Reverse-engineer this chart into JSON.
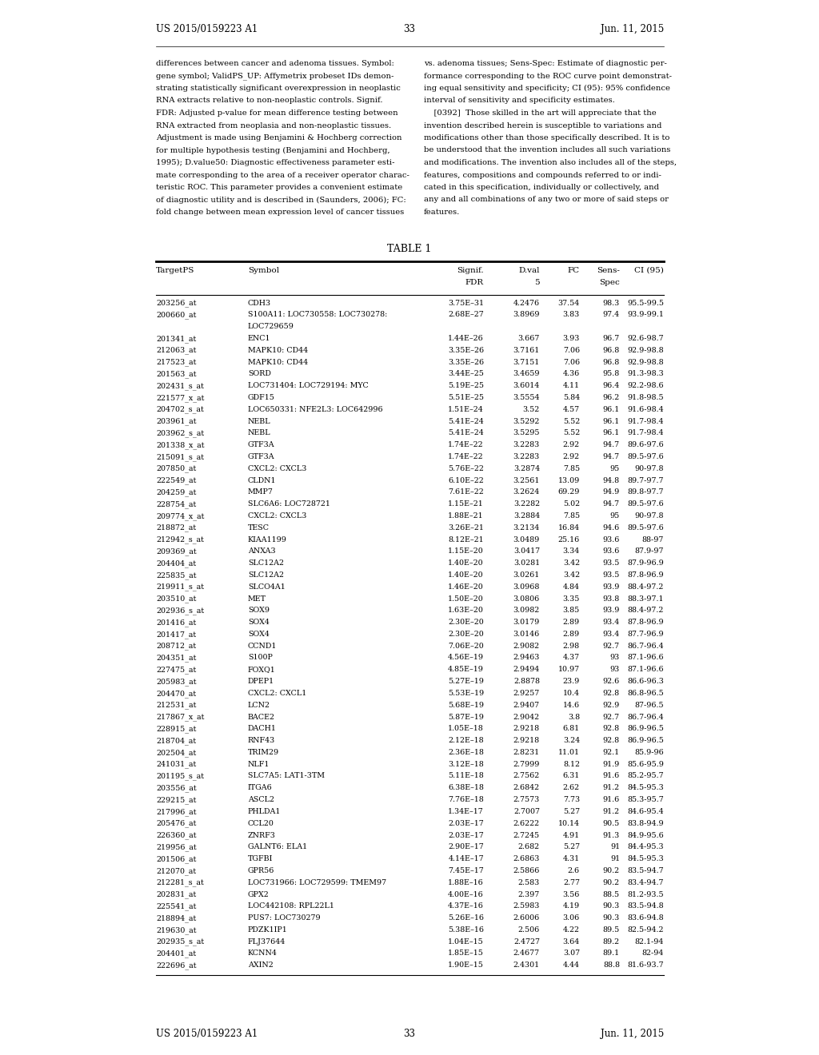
{
  "page_number": "33",
  "patent_number": "US 2015/0159223 A1",
  "patent_date": "Jun. 11, 2015",
  "left_text_lines": [
    "differences between cancer and adenoma tissues. Symbol:",
    "gene symbol; ValidPS_UP: Affymetrix probeset IDs demon-",
    "strating statistically significant overexpression in neoplastic",
    "RNA extracts relative to non-neoplastic controls. Signif.",
    "FDR: Adjusted p-value for mean difference testing between",
    "RNA extracted from neoplasia and non-neoplastic tissues.",
    "Adjustment is made using Benjamini & Hochberg correction",
    "for multiple hypothesis testing (Benjamini and Hochberg,",
    "1995); D.value50: Diagnostic effectiveness parameter esti-",
    "mate corresponding to the area of a receiver operator charac-",
    "teristic ROC. This parameter provides a convenient estimate",
    "of diagnostic utility and is described in (Saunders, 2006); FC:",
    "fold change between mean expression level of cancer tissues"
  ],
  "right_text_lines": [
    "vs. adenoma tissues; Sens-Spec: Estimate of diagnostic per-",
    "formance corresponding to the ROC curve point demonstrat-",
    "ing equal sensitivity and specificity; CI (95): 95% confidence",
    "interval of sensitivity and specificity estimates.",
    "    [0392]  Those skilled in the art will appreciate that the",
    "invention described herein is susceptible to variations and",
    "modifications other than those specifically described. It is to",
    "be understood that the invention includes all such variations",
    "and modifications. The invention also includes all of the steps,",
    "features, compositions and compounds referred to or indi-",
    "cated in this specification, individually or collectively, and",
    "any and all combinations of any two or more of said steps or",
    "features."
  ],
  "table_title": "TABLE 1",
  "col_headers_line1": [
    "TargetPS",
    "Symbol",
    "Signif.",
    "D.val",
    "FC",
    "Sens-",
    "CI (95)"
  ],
  "col_headers_line2": [
    "",
    "",
    "FDR",
    "5",
    "",
    "Spec",
    ""
  ],
  "rows": [
    [
      "203256_at",
      "CDH3",
      "3.75E–31",
      "4.2476",
      "37.54",
      "98.3",
      "95.5-99.5"
    ],
    [
      "200660_at",
      "S100A11: LOC730558: LOC730278:",
      "2.68E–27",
      "3.8969",
      "3.83",
      "97.4",
      "93.9-99.1"
    ],
    [
      "",
      "LOC729659",
      "",
      "",
      "",
      "",
      ""
    ],
    [
      "201341_at",
      "ENC1",
      "1.44E–26",
      "3.667",
      "3.93",
      "96.7",
      "92.6-98.7"
    ],
    [
      "212063_at",
      "MAPK10: CD44",
      "3.35E–26",
      "3.7161",
      "7.06",
      "96.8",
      "92.9-98.8"
    ],
    [
      "217523_at",
      "MAPK10: CD44",
      "3.35E–26",
      "3.7151",
      "7.06",
      "96.8",
      "92.9-98.8"
    ],
    [
      "201563_at",
      "SORD",
      "3.44E–25",
      "3.4659",
      "4.36",
      "95.8",
      "91.3-98.3"
    ],
    [
      "202431_s_at",
      "LOC731404: LOC729194: MYC",
      "5.19E–25",
      "3.6014",
      "4.11",
      "96.4",
      "92.2-98.6"
    ],
    [
      "221577_x_at",
      "GDF15",
      "5.51E–25",
      "3.5554",
      "5.84",
      "96.2",
      "91.8-98.5"
    ],
    [
      "204702_s_at",
      "LOC650331: NFE2L3: LOC642996",
      "1.51E–24",
      "3.52",
      "4.57",
      "96.1",
      "91.6-98.4"
    ],
    [
      "203961_at",
      "NEBL",
      "5.41E–24",
      "3.5292",
      "5.52",
      "96.1",
      "91.7-98.4"
    ],
    [
      "203962_s_at",
      "NEBL",
      "5.41E–24",
      "3.5295",
      "5.52",
      "96.1",
      "91.7-98.4"
    ],
    [
      "201338_x_at",
      "GTF3A",
      "1.74E–22",
      "3.2283",
      "2.92",
      "94.7",
      "89.6-97.6"
    ],
    [
      "215091_s_at",
      "GTF3A",
      "1.74E–22",
      "3.2283",
      "2.92",
      "94.7",
      "89.5-97.6"
    ],
    [
      "207850_at",
      "CXCL2: CXCL3",
      "5.76E–22",
      "3.2874",
      "7.85",
      "95",
      "90-97.8"
    ],
    [
      "222549_at",
      "CLDN1",
      "6.10E–22",
      "3.2561",
      "13.09",
      "94.8",
      "89.7-97.7"
    ],
    [
      "204259_at",
      "MMP7",
      "7.61E–22",
      "3.2624",
      "69.29",
      "94.9",
      "89.8-97.7"
    ],
    [
      "228754_at",
      "SLC6A6: LOC728721",
      "1.15E–21",
      "3.2282",
      "5.02",
      "94.7",
      "89.5-97.6"
    ],
    [
      "209774_x_at",
      "CXCL2: CXCL3",
      "1.88E–21",
      "3.2884",
      "7.85",
      "95",
      "90-97.8"
    ],
    [
      "218872_at",
      "TESC",
      "3.26E–21",
      "3.2134",
      "16.84",
      "94.6",
      "89.5-97.6"
    ],
    [
      "212942_s_at",
      "KIAA1199",
      "8.12E–21",
      "3.0489",
      "25.16",
      "93.6",
      "88-97"
    ],
    [
      "209369_at",
      "ANXA3",
      "1.15E–20",
      "3.0417",
      "3.34",
      "93.6",
      "87.9-97"
    ],
    [
      "204404_at",
      "SLC12A2",
      "1.40E–20",
      "3.0281",
      "3.42",
      "93.5",
      "87.9-96.9"
    ],
    [
      "225835_at",
      "SLC12A2",
      "1.40E–20",
      "3.0261",
      "3.42",
      "93.5",
      "87.8-96.9"
    ],
    [
      "219911_s_at",
      "SLCO4A1",
      "1.46E–20",
      "3.0968",
      "4.84",
      "93.9",
      "88.4-97.2"
    ],
    [
      "203510_at",
      "MET",
      "1.50E–20",
      "3.0806",
      "3.35",
      "93.8",
      "88.3-97.1"
    ],
    [
      "202936_s_at",
      "SOX9",
      "1.63E–20",
      "3.0982",
      "3.85",
      "93.9",
      "88.4-97.2"
    ],
    [
      "201416_at",
      "SOX4",
      "2.30E–20",
      "3.0179",
      "2.89",
      "93.4",
      "87.8-96.9"
    ],
    [
      "201417_at",
      "SOX4",
      "2.30E–20",
      "3.0146",
      "2.89",
      "93.4",
      "87.7-96.9"
    ],
    [
      "208712_at",
      "CCND1",
      "7.06E–20",
      "2.9082",
      "2.98",
      "92.7",
      "86.7-96.4"
    ],
    [
      "204351_at",
      "S100P",
      "4.56E–19",
      "2.9463",
      "4.37",
      "93",
      "87.1-96.6"
    ],
    [
      "227475_at",
      "FOXQ1",
      "4.85E–19",
      "2.9494",
      "10.97",
      "93",
      "87.1-96.6"
    ],
    [
      "205983_at",
      "DPEP1",
      "5.27E–19",
      "2.8878",
      "23.9",
      "92.6",
      "86.6-96.3"
    ],
    [
      "204470_at",
      "CXCL2: CXCL1",
      "5.53E–19",
      "2.9257",
      "10.4",
      "92.8",
      "86.8-96.5"
    ],
    [
      "212531_at",
      "LCN2",
      "5.68E–19",
      "2.9407",
      "14.6",
      "92.9",
      "87-96.5"
    ],
    [
      "217867_x_at",
      "BACE2",
      "5.87E–19",
      "2.9042",
      "3.8",
      "92.7",
      "86.7-96.4"
    ],
    [
      "228915_at",
      "DACH1",
      "1.05E–18",
      "2.9218",
      "6.81",
      "92.8",
      "86.9-96.5"
    ],
    [
      "218704_at",
      "RNF43",
      "2.12E–18",
      "2.9218",
      "3.24",
      "92.8",
      "86.9-96.5"
    ],
    [
      "202504_at",
      "TRIM29",
      "2.36E–18",
      "2.8231",
      "11.01",
      "92.1",
      "85.9-96"
    ],
    [
      "241031_at",
      "NLF1",
      "3.12E–18",
      "2.7999",
      "8.12",
      "91.9",
      "85.6-95.9"
    ],
    [
      "201195_s_at",
      "SLC7A5: LAT1-3TM",
      "5.11E–18",
      "2.7562",
      "6.31",
      "91.6",
      "85.2-95.7"
    ],
    [
      "203556_at",
      "ITGA6",
      "6.38E–18",
      "2.6842",
      "2.62",
      "91.2",
      "84.5-95.3"
    ],
    [
      "229215_at",
      "ASCL2",
      "7.76E–18",
      "2.7573",
      "7.73",
      "91.6",
      "85.3-95.7"
    ],
    [
      "217996_at",
      "PHLDA1",
      "1.34E–17",
      "2.7007",
      "5.27",
      "91.2",
      "84.6-95.4"
    ],
    [
      "205476_at",
      "CCL20",
      "2.03E–17",
      "2.6222",
      "10.14",
      "90.5",
      "83.8-94.9"
    ],
    [
      "226360_at",
      "ZNRF3",
      "2.03E–17",
      "2.7245",
      "4.91",
      "91.3",
      "84.9-95.6"
    ],
    [
      "219956_at",
      "GALNT6: ELA1",
      "2.90E–17",
      "2.682",
      "5.27",
      "91",
      "84.4-95.3"
    ],
    [
      "201506_at",
      "TGFBI",
      "4.14E–17",
      "2.6863",
      "4.31",
      "91",
      "84.5-95.3"
    ],
    [
      "212070_at",
      "GPR56",
      "7.45E–17",
      "2.5866",
      "2.6",
      "90.2",
      "83.5-94.7"
    ],
    [
      "212281_s_at",
      "LOC731966: LOC729599: TMEM97",
      "1.88E–16",
      "2.583",
      "2.77",
      "90.2",
      "83.4-94.7"
    ],
    [
      "202831_at",
      "GPX2",
      "4.00E–16",
      "2.397",
      "3.56",
      "88.5",
      "81.2-93.5"
    ],
    [
      "225541_at",
      "LOC442108: RPL22L1",
      "4.37E–16",
      "2.5983",
      "4.19",
      "90.3",
      "83.5-94.8"
    ],
    [
      "218894_at",
      "PUS7: LOC730279",
      "5.26E–16",
      "2.6006",
      "3.06",
      "90.3",
      "83.6-94.8"
    ],
    [
      "219630_at",
      "PDZK1IP1",
      "5.38E–16",
      "2.506",
      "4.22",
      "89.5",
      "82.5-94.2"
    ],
    [
      "202935_s_at",
      "FLJ37644",
      "1.04E–15",
      "2.4727",
      "3.64",
      "89.2",
      "82.1-94"
    ],
    [
      "204401_at",
      "KCNN4",
      "1.85E–15",
      "2.4677",
      "3.07",
      "89.1",
      "82-94"
    ],
    [
      "222696_at",
      "AXIN2",
      "1.90E–15",
      "2.4301",
      "4.44",
      "88.8",
      "81.6-93.7"
    ]
  ]
}
